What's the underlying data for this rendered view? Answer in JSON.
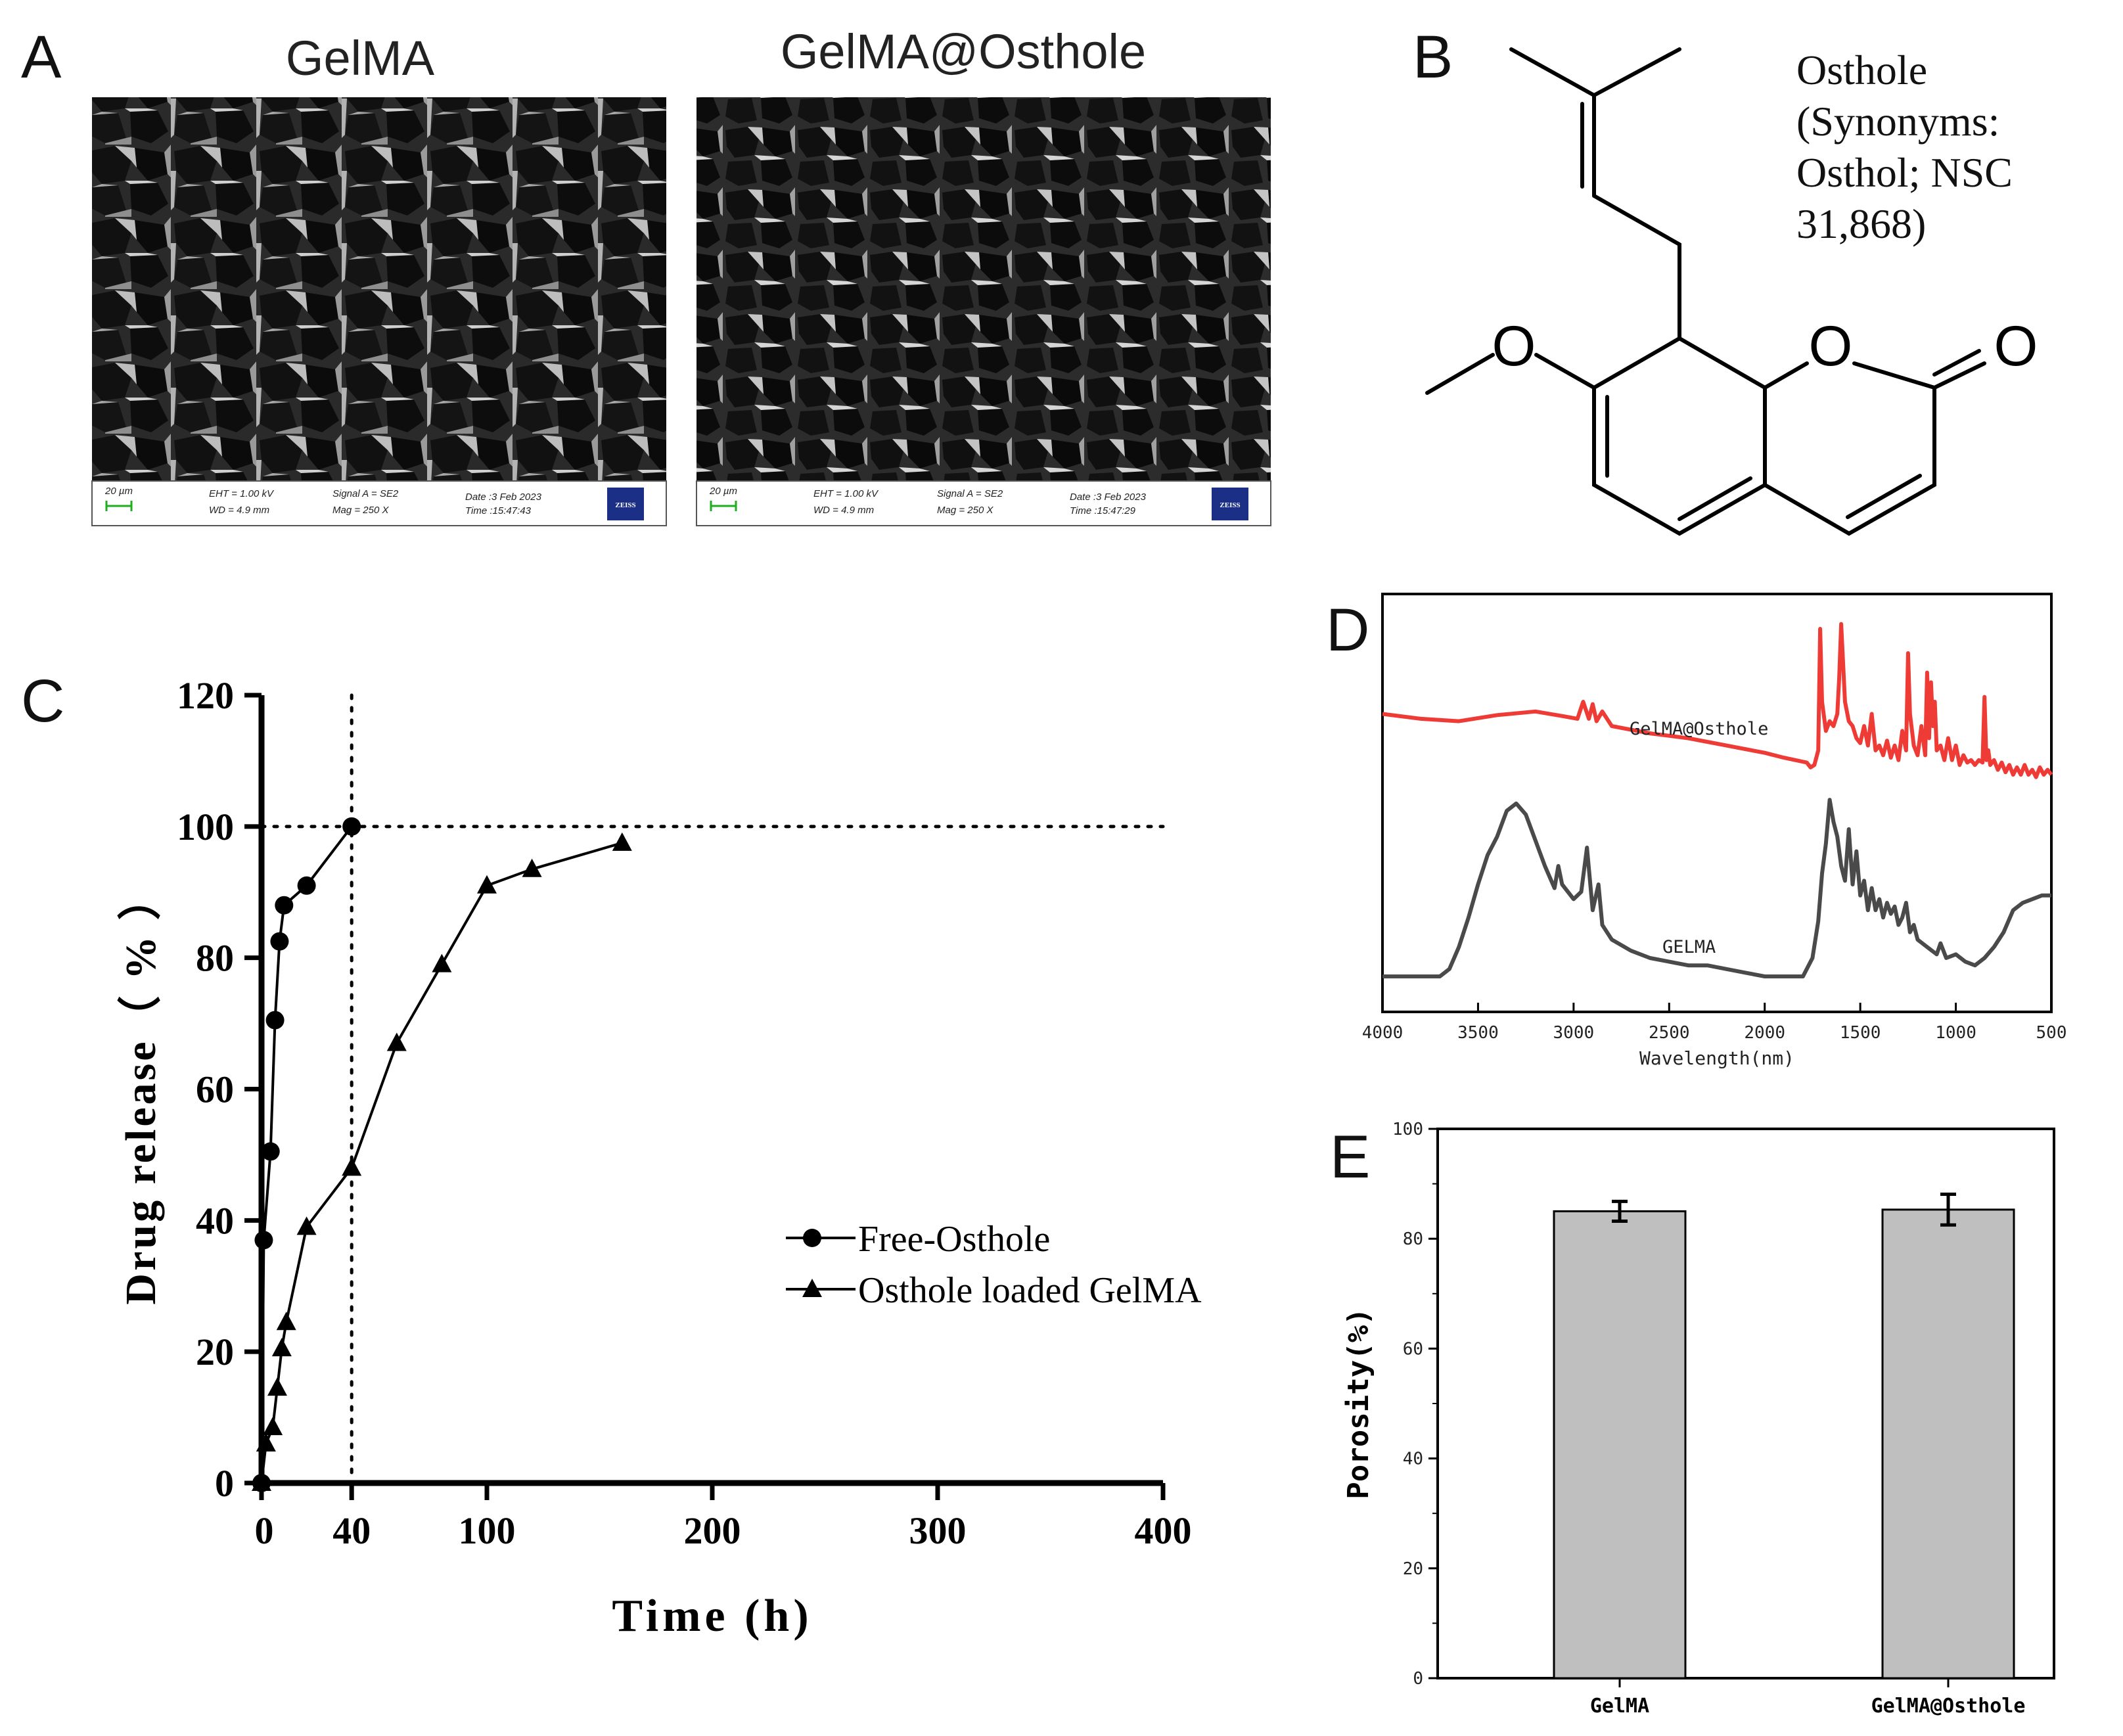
{
  "panels": {
    "A": {
      "letter": "A",
      "images": [
        {
          "title": "GelMA",
          "scale": "20 µm",
          "eht": "EHT = 1.00 kV",
          "wd": "WD = 4.9 mm",
          "signal": "Signal A = SE2",
          "mag": "Mag = 250 X",
          "date": "Date :3 Feb 2023",
          "time": "Time :15:47:43",
          "logo": "ZEISS"
        },
        {
          "title": "GelMA@Osthole",
          "scale": "20 µm",
          "eht": "EHT = 1.00 kV",
          "wd": "WD = 4.9 mm",
          "signal": "Signal A = SE2",
          "mag": "Mag = 250 X",
          "date": "Date :3 Feb 2023",
          "time": "Time :15:47:29",
          "logo": "ZEISS"
        }
      ]
    },
    "B": {
      "letter": "B",
      "label_lines": [
        "Osthole",
        "(Synonyms:",
        "Osthol; NSC",
        "31,868)"
      ],
      "atoms": {
        "o_methoxy": "O",
        "o_ring": "O",
        "o_carbonyl": "O"
      }
    },
    "C": {
      "letter": "C"
    },
    "D": {
      "letter": "D"
    },
    "E": {
      "letter": "E"
    }
  },
  "chart_data": [
    {
      "panel": "C",
      "type": "line",
      "xlabel": "Time (h)",
      "ylabel": "Drug release（ % ）",
      "xlim": [
        0,
        400
      ],
      "ylim": [
        0,
        120
      ],
      "x_ticks": [
        "0",
        "40",
        "100",
        "200",
        "300",
        "400"
      ],
      "y_ticks": [
        "0",
        "20",
        "40",
        "60",
        "80",
        "100",
        "120"
      ],
      "reference_lines": {
        "x": 40,
        "y": 100
      },
      "legend_position": "right",
      "series": [
        {
          "name": "Free-Osthole",
          "marker": "circle",
          "x": [
            0,
            1,
            4,
            6,
            8,
            10,
            20,
            40
          ],
          "y": [
            0,
            37,
            50.5,
            70.5,
            82.5,
            88,
            91,
            100
          ]
        },
        {
          "name": "Osthole loaded GelMA",
          "marker": "triangle",
          "x": [
            0,
            2,
            5,
            7,
            9,
            11,
            20,
            40,
            60,
            80,
            100,
            120,
            160
          ],
          "y": [
            0,
            6,
            8.5,
            14.5,
            20.5,
            24.5,
            39,
            48,
            67,
            79,
            91,
            93.5,
            97.5
          ]
        }
      ]
    },
    {
      "panel": "D",
      "type": "line",
      "xlabel": "Wavelength(nm)",
      "ylabel": "",
      "xlim": [
        4000,
        500
      ],
      "x_ticks": [
        "4000",
        "3500",
        "3000",
        "2500",
        "2000",
        "1500",
        "1000",
        "500"
      ],
      "series": [
        {
          "name": "GelMA@Osthole",
          "color": "#ef3b36",
          "x": [
            4000,
            3800,
            3600,
            3400,
            3200,
            3050,
            2980,
            2950,
            2920,
            2900,
            2880,
            2850,
            2800,
            2600,
            2400,
            2200,
            2000,
            1900,
            1780,
            1760,
            1740,
            1720,
            1710,
            1700,
            1680,
            1660,
            1640,
            1620,
            1610,
            1600,
            1580,
            1560,
            1540,
            1520,
            1500,
            1480,
            1460,
            1440,
            1420,
            1400,
            1380,
            1360,
            1340,
            1320,
            1300,
            1280,
            1260,
            1250,
            1240,
            1220,
            1200,
            1180,
            1160,
            1150,
            1140,
            1130,
            1120,
            1110,
            1100,
            1080,
            1060,
            1040,
            1020,
            1000,
            980,
            960,
            940,
            920,
            900,
            880,
            860,
            850,
            840,
            830,
            820,
            800,
            780,
            760,
            740,
            720,
            700,
            680,
            660,
            640,
            620,
            600,
            580,
            560,
            540,
            520,
            500
          ],
          "y": [
            0.55,
            0.53,
            0.52,
            0.545,
            0.56,
            0.54,
            0.53,
            0.6,
            0.53,
            0.59,
            0.52,
            0.56,
            0.5,
            0.47,
            0.45,
            0.42,
            0.39,
            0.37,
            0.35,
            0.33,
            0.34,
            0.4,
            0.9,
            0.6,
            0.48,
            0.52,
            0.5,
            0.55,
            0.7,
            0.92,
            0.6,
            0.52,
            0.5,
            0.45,
            0.43,
            0.5,
            0.42,
            0.55,
            0.4,
            0.42,
            0.38,
            0.44,
            0.37,
            0.42,
            0.36,
            0.48,
            0.4,
            0.8,
            0.55,
            0.42,
            0.38,
            0.5,
            0.38,
            0.72,
            0.45,
            0.68,
            0.5,
            0.6,
            0.4,
            0.42,
            0.36,
            0.45,
            0.36,
            0.42,
            0.34,
            0.38,
            0.35,
            0.36,
            0.34,
            0.36,
            0.35,
            0.62,
            0.36,
            0.4,
            0.34,
            0.36,
            0.32,
            0.35,
            0.31,
            0.34,
            0.3,
            0.33,
            0.3,
            0.34,
            0.3,
            0.32,
            0.29,
            0.33,
            0.3,
            0.32,
            0.3
          ]
        },
        {
          "name": "GELMA",
          "color": "#4a4a4a",
          "x": [
            4000,
            3900,
            3800,
            3700,
            3650,
            3600,
            3550,
            3500,
            3450,
            3400,
            3350,
            3300,
            3250,
            3200,
            3150,
            3100,
            3080,
            3060,
            3000,
            2960,
            2930,
            2900,
            2870,
            2850,
            2800,
            2700,
            2600,
            2500,
            2400,
            2300,
            2200,
            2100,
            2000,
            1900,
            1800,
            1750,
            1720,
            1700,
            1680,
            1660,
            1640,
            1620,
            1600,
            1580,
            1560,
            1540,
            1520,
            1500,
            1480,
            1460,
            1440,
            1420,
            1400,
            1380,
            1360,
            1340,
            1320,
            1300,
            1280,
            1260,
            1240,
            1220,
            1200,
            1150,
            1100,
            1080,
            1050,
            1000,
            950,
            900,
            850,
            800,
            750,
            700,
            650,
            600,
            550,
            500
          ],
          "y": [
            0.0,
            0.0,
            0.0,
            0.0,
            0.02,
            0.08,
            0.16,
            0.25,
            0.33,
            0.38,
            0.45,
            0.47,
            0.44,
            0.37,
            0.3,
            0.24,
            0.3,
            0.25,
            0.21,
            0.23,
            0.35,
            0.18,
            0.25,
            0.14,
            0.1,
            0.07,
            0.05,
            0.04,
            0.03,
            0.03,
            0.02,
            0.01,
            0.0,
            0.0,
            0.0,
            0.05,
            0.15,
            0.28,
            0.36,
            0.48,
            0.42,
            0.38,
            0.3,
            0.26,
            0.4,
            0.25,
            0.34,
            0.22,
            0.26,
            0.18,
            0.24,
            0.18,
            0.21,
            0.16,
            0.2,
            0.17,
            0.19,
            0.14,
            0.16,
            0.2,
            0.12,
            0.14,
            0.1,
            0.08,
            0.06,
            0.09,
            0.05,
            0.06,
            0.04,
            0.03,
            0.05,
            0.08,
            0.12,
            0.18,
            0.2,
            0.21,
            0.22,
            0.22
          ]
        }
      ]
    },
    {
      "panel": "E",
      "type": "bar",
      "ylabel": "Porosity(%)",
      "categories": [
        "GelMA",
        "GelMA@Osthole"
      ],
      "values": [
        85,
        85.3
      ],
      "errors": [
        1.8,
        2.8
      ],
      "ylim": [
        0,
        100
      ],
      "y_ticks": [
        "0",
        "20",
        "40",
        "60",
        "80",
        "100"
      ],
      "bar_color": "#bfbfbf"
    }
  ]
}
